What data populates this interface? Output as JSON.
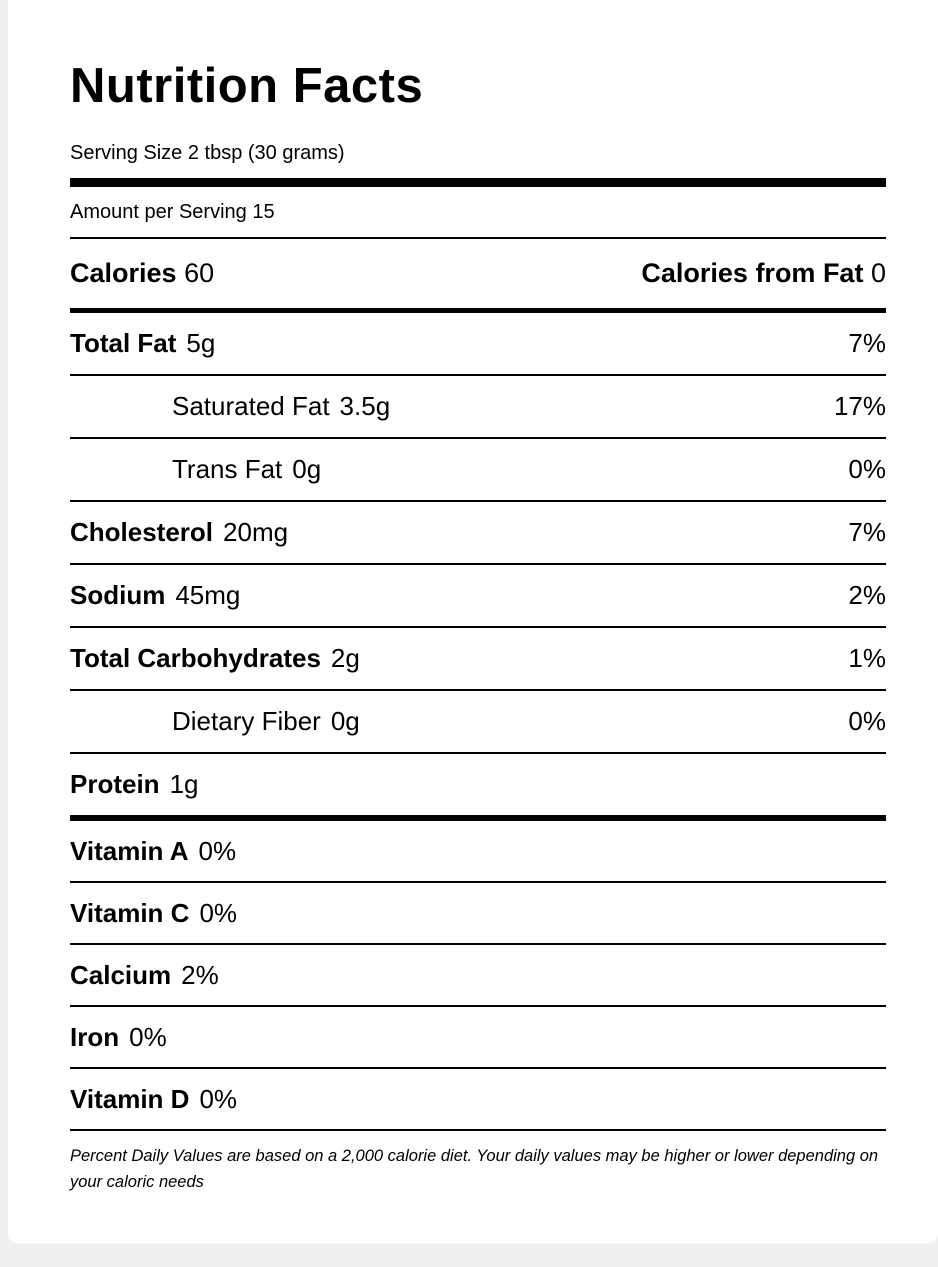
{
  "label": {
    "title": "Nutrition Facts",
    "serving_size": "Serving Size 2 tbsp (30 grams)",
    "amount_per_serving": "Amount per Serving 15",
    "calories": {
      "label": "Calories",
      "value": "60"
    },
    "calories_from_fat": {
      "label": "Calories from Fat",
      "value": "0"
    },
    "nutrients": [
      {
        "name": "Total Fat",
        "amount": "5g",
        "dv": "7%"
      },
      {
        "name": "Saturated Fat",
        "amount": "3.5g",
        "dv": "17%"
      },
      {
        "name": "Trans Fat",
        "amount": "0g",
        "dv": "0%"
      },
      {
        "name": "Cholesterol",
        "amount": "20mg",
        "dv": "7%"
      },
      {
        "name": "Sodium",
        "amount": "45mg",
        "dv": "2%"
      },
      {
        "name": "Total Carbohydrates",
        "amount": "2g",
        "dv": "1%"
      },
      {
        "name": "Dietary Fiber",
        "amount": "0g",
        "dv": "0%"
      },
      {
        "name": "Protein",
        "amount": "1g",
        "dv": ""
      }
    ],
    "vitamins": [
      {
        "name": "Vitamin A",
        "value": "0%"
      },
      {
        "name": "Vitamin C",
        "value": "0%"
      },
      {
        "name": "Calcium",
        "value": "2%"
      },
      {
        "name": "Iron",
        "value": "0%"
      },
      {
        "name": "Vitamin D",
        "value": "0%"
      }
    ],
    "footnote": "Percent Daily Values are based on a 2,000 calorie diet. Your daily values may be higher or lower depending on your caloric needs",
    "colors": {
      "ink": "#000000",
      "paper": "#ffffff"
    }
  }
}
